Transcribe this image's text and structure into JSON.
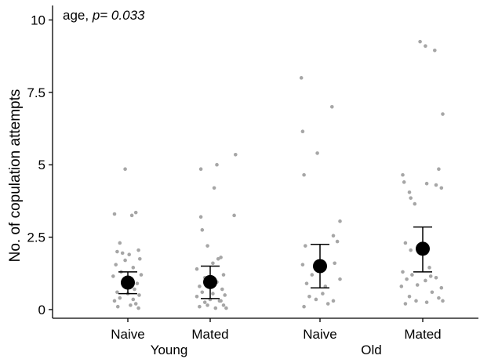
{
  "chart_data": {
    "type": "scatter",
    "annotation": {
      "prefix": "age, ",
      "p_label": "p",
      "p_value": "= 0.033"
    },
    "ylabel": "No. of copulation attempts",
    "xlabel": "",
    "ylim": [
      -0.3,
      10.5
    ],
    "yticks": [
      0,
      2.5,
      5,
      7.5,
      10
    ],
    "ytick_labels": [
      "0",
      "2.5",
      "5",
      "7.5",
      "10"
    ],
    "grid": false,
    "legend": "none",
    "colors": {
      "points": "#a6a6a6",
      "mean": "#000000",
      "axis": "#000000"
    },
    "categories": [
      "Naive",
      "Mated",
      "Naive",
      "Mated"
    ],
    "groups": [
      {
        "label": "Young",
        "categories": [
          0,
          1
        ]
      },
      {
        "label": "Old",
        "categories": [
          2,
          3
        ]
      }
    ],
    "summary": [
      {
        "mean": 0.93,
        "ci_low": 0.55,
        "ci_high": 1.3
      },
      {
        "mean": 0.95,
        "ci_low": 0.38,
        "ci_high": 1.5
      },
      {
        "mean": 1.5,
        "ci_low": 0.75,
        "ci_high": 2.25
      },
      {
        "mean": 2.1,
        "ci_low": 1.3,
        "ci_high": 2.85
      }
    ],
    "points": [
      [
        [
          -0.04,
          4.85
        ],
        [
          -0.2,
          3.3
        ],
        [
          0.06,
          3.25
        ],
        [
          0.12,
          3.35
        ],
        [
          -0.12,
          2.3
        ],
        [
          0.16,
          2.05
        ],
        [
          -0.16,
          2.0
        ],
        [
          -0.08,
          1.95
        ],
        [
          -0.04,
          1.7
        ],
        [
          0.18,
          1.75
        ],
        [
          0.02,
          1.9
        ],
        [
          -0.18,
          1.55
        ],
        [
          0.08,
          1.45
        ],
        [
          -0.1,
          1.3
        ],
        [
          0.2,
          1.2
        ],
        [
          -0.22,
          1.15
        ],
        [
          0.05,
          0.95
        ],
        [
          0.14,
          0.9
        ],
        [
          -0.06,
          0.85
        ],
        [
          0.1,
          0.7
        ],
        [
          -0.16,
          0.6
        ],
        [
          0.0,
          0.55
        ],
        [
          0.17,
          0.5
        ],
        [
          -0.12,
          0.4
        ],
        [
          0.08,
          0.35
        ],
        [
          -0.2,
          0.3
        ],
        [
          0.12,
          0.2
        ],
        [
          0.04,
          0.15
        ],
        [
          -0.15,
          0.1
        ],
        [
          0.16,
          0.05
        ]
      ],
      [
        [
          0.38,
          5.35
        ],
        [
          -0.14,
          4.85
        ],
        [
          0.1,
          5.0
        ],
        [
          0.06,
          4.2
        ],
        [
          0.36,
          3.25
        ],
        [
          -0.14,
          3.2
        ],
        [
          -0.12,
          2.75
        ],
        [
          -0.04,
          2.2
        ],
        [
          0.04,
          1.6
        ],
        [
          0.16,
          1.8
        ],
        [
          -0.2,
          1.4
        ],
        [
          0.12,
          1.75
        ],
        [
          0.2,
          1.2
        ],
        [
          -0.08,
          1.1
        ],
        [
          0.1,
          0.95
        ],
        [
          -0.16,
          0.8
        ],
        [
          0.18,
          0.7
        ],
        [
          -0.12,
          0.6
        ],
        [
          0.04,
          0.55
        ],
        [
          0.22,
          0.5
        ],
        [
          -0.2,
          0.45
        ],
        [
          0.0,
          0.35
        ],
        [
          0.14,
          0.3
        ],
        [
          -0.08,
          0.25
        ],
        [
          0.2,
          0.15
        ],
        [
          -0.16,
          0.1
        ],
        [
          0.08,
          0.05
        ],
        [
          0.24,
          0.05
        ],
        [
          -0.04,
          0.15
        ],
        [
          0.16,
          0.3
        ]
      ],
      [
        [
          -0.28,
          8.0
        ],
        [
          0.18,
          7.0
        ],
        [
          -0.26,
          6.15
        ],
        [
          -0.04,
          5.4
        ],
        [
          -0.24,
          4.65
        ],
        [
          0.3,
          3.05
        ],
        [
          0.2,
          2.55
        ],
        [
          0.26,
          2.35
        ],
        [
          -0.22,
          2.2
        ],
        [
          -0.26,
          1.55
        ],
        [
          0.22,
          1.6
        ],
        [
          -0.12,
          1.2
        ],
        [
          0.3,
          1.05
        ],
        [
          -0.2,
          0.9
        ],
        [
          0.08,
          0.8
        ],
        [
          0.04,
          0.55
        ],
        [
          -0.16,
          0.45
        ],
        [
          0.2,
          0.3
        ],
        [
          -0.06,
          0.35
        ],
        [
          0.12,
          0.2
        ],
        [
          -0.24,
          0.1
        ]
      ],
      [
        [
          -0.04,
          9.25
        ],
        [
          0.04,
          9.1
        ],
        [
          0.18,
          8.95
        ],
        [
          0.3,
          6.75
        ],
        [
          -0.3,
          4.65
        ],
        [
          0.24,
          4.85
        ],
        [
          -0.28,
          4.4
        ],
        [
          0.2,
          4.3
        ],
        [
          0.28,
          4.2
        ],
        [
          0.06,
          4.35
        ],
        [
          -0.2,
          4.05
        ],
        [
          -0.18,
          3.85
        ],
        [
          -0.12,
          3.65
        ],
        [
          -0.26,
          2.3
        ],
        [
          -0.18,
          2.05
        ],
        [
          0.1,
          1.45
        ],
        [
          -0.3,
          1.3
        ],
        [
          -0.16,
          1.2
        ],
        [
          0.12,
          1.15
        ],
        [
          0.2,
          1.1
        ],
        [
          -0.24,
          1.05
        ],
        [
          0.04,
          1.0
        ],
        [
          -0.08,
          0.85
        ],
        [
          0.28,
          0.75
        ],
        [
          -0.32,
          0.8
        ],
        [
          0.14,
          0.6
        ],
        [
          -0.2,
          0.45
        ],
        [
          0.24,
          0.4
        ],
        [
          -0.1,
          0.3
        ],
        [
          0.3,
          0.3
        ],
        [
          -0.26,
          0.2
        ],
        [
          0.06,
          0.25
        ]
      ]
    ]
  }
}
